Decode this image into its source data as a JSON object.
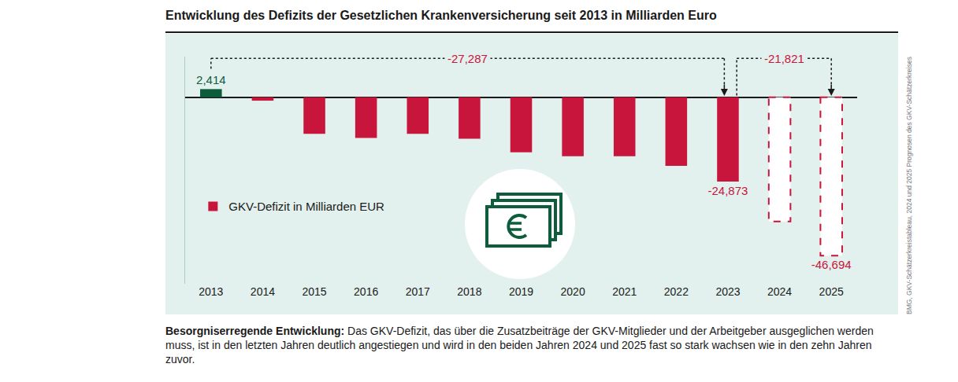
{
  "chart_data": {
    "type": "bar",
    "title": "Entwicklung des Defizits der Gesetzlichen Krankenversicherung seit 2013 in Milliarden Euro",
    "categories": [
      "2013",
      "2014",
      "2015",
      "2016",
      "2017",
      "2018",
      "2019",
      "2020",
      "2021",
      "2022",
      "2023",
      "2024",
      "2025"
    ],
    "series": [
      {
        "color": "#0d5c3c",
        "values": [
          2.414,
          null,
          null,
          null,
          null,
          null,
          null,
          null,
          null,
          null,
          null,
          null,
          null
        ],
        "value_labels": [
          "2,414",
          null,
          null,
          null,
          null,
          null,
          null,
          null,
          null,
          null,
          null,
          null,
          null
        ]
      },
      {
        "name": "GKV-Defizit in Milliarden EUR",
        "color": "#c8153c",
        "values": [
          null,
          -1.0,
          -10.8,
          -12.0,
          -10.8,
          -12.2,
          -16.2,
          -17.4,
          -17.4,
          -20.2,
          -24.873,
          null,
          null
        ],
        "value_labels": [
          null,
          null,
          null,
          null,
          null,
          null,
          null,
          null,
          null,
          null,
          "-24,873",
          null,
          null
        ]
      },
      {
        "color": "#c8153c",
        "line_style": "dashed",
        "values": [
          null,
          null,
          null,
          null,
          null,
          null,
          null,
          null,
          null,
          null,
          null,
          -36.6,
          -46.694
        ],
        "value_labels": [
          null,
          null,
          null,
          null,
          null,
          null,
          null,
          null,
          null,
          null,
          null,
          null,
          "-46,694"
        ]
      }
    ],
    "annotations": [
      {
        "text": "-27,287",
        "from": "2013",
        "to": "2023"
      },
      {
        "text": "-21,821",
        "from": "2023",
        "to": "2025"
      }
    ],
    "ylim": [
      -55,
      12
    ],
    "grid": false,
    "tick_labels": "x",
    "data_labels": true,
    "legend": "left",
    "caption": {
      "bold": "Besorgniserregende Entwicklung:",
      "text": "Das GKV-Defizit, das über die Zusatzbeiträge der GKV-Mitglieder und der Arbeitgeber ausgeglichen werden muss, ist in den letzten Jahren deutlich angestiegen und wird in den beiden Jahren 2024 und 2025 fast so stark wachsen wie in den zehn Jahren zuvor."
    },
    "source": "BMG, GKV-Schätzerkreistableau, 2024 und 2025 Prognosen des GKV-Schätzerkreises"
  }
}
